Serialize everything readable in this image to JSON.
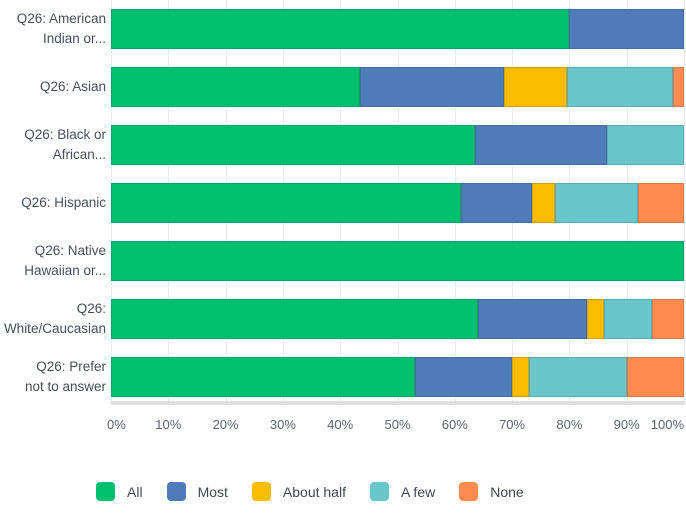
{
  "chart_data": {
    "type": "bar",
    "orientation": "horizontal",
    "stacked": true,
    "title": "",
    "xlabel": "",
    "ylabel": "",
    "xlim": [
      0,
      100
    ],
    "grid": "vertical",
    "legend_position": "bottom",
    "x_ticks": [
      "0%",
      "10%",
      "20%",
      "30%",
      "40%",
      "50%",
      "60%",
      "70%",
      "80%",
      "90%",
      "100%"
    ],
    "categories": [
      "Q26: American\nIndian or...",
      "Q26: Asian",
      "Q26: Black or\nAfrican...",
      "Q26: Hispanic",
      "Q26: Native\nHawaiian or...",
      "Q26:\nWhite/Caucasian",
      "Q26: Prefer\nnot to answer"
    ],
    "series": [
      {
        "name": "All",
        "color": "#00bf6f",
        "values": [
          80,
          43.5,
          63.5,
          61,
          100,
          64,
          53
        ]
      },
      {
        "name": "Most",
        "color": "#4f7bb8",
        "values": [
          20,
          25,
          23,
          12.5,
          0,
          19,
          17
        ]
      },
      {
        "name": "About half",
        "color": "#f8bc00",
        "values": [
          0,
          11,
          0,
          4,
          0,
          3,
          3
        ]
      },
      {
        "name": "A few",
        "color": "#69c7cc",
        "values": [
          0,
          18.5,
          13.5,
          14.5,
          0,
          8.5,
          17
        ]
      },
      {
        "name": "None",
        "color": "#ff8b50",
        "values": [
          0,
          2,
          0,
          8,
          0,
          5.5,
          10
        ]
      }
    ]
  },
  "colors": {
    "gridline": "#e9eaea",
    "baseline": "#dedede",
    "category_label": "#47505e",
    "tick_label": "#5a6472",
    "legend_label": "#3f4754"
  }
}
